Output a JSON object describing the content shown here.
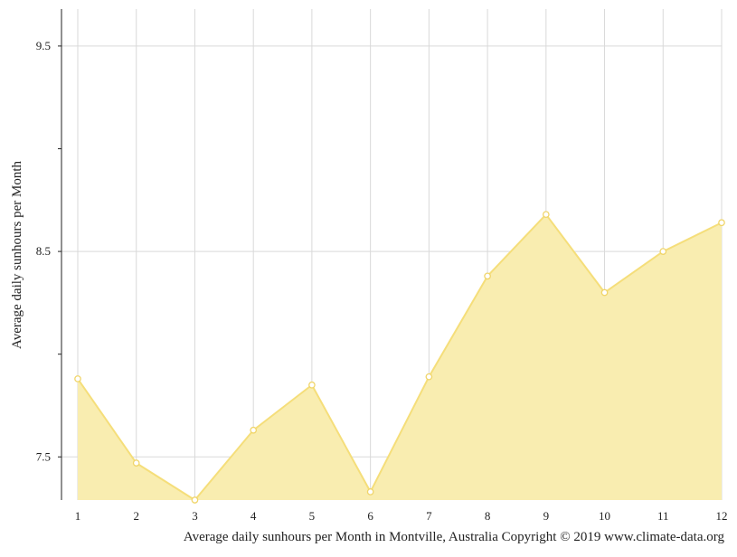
{
  "chart_data": {
    "type": "area",
    "title": "",
    "xlabel": "",
    "ylabel": "Average daily sunhours per Month",
    "caption": "Average daily sunhours per Month in Montville, Australia Copyright © 2019 www.climate-data.org",
    "x": [
      1,
      2,
      3,
      4,
      5,
      6,
      7,
      8,
      9,
      10,
      11,
      12
    ],
    "x_tick_labels": [
      "1",
      "2",
      "3",
      "4",
      "5",
      "6",
      "7",
      "8",
      "9",
      "10",
      "11",
      "12"
    ],
    "y_tick_labels": [
      "9.5",
      "8.5",
      "7.5"
    ],
    "y_ticks": [
      9.5,
      8.5,
      7.5
    ],
    "y_minor_ticks": [
      9.0,
      8.0
    ],
    "ylim": [
      7.29,
      9.68
    ],
    "grid": true,
    "legend": "none",
    "series": [
      {
        "values": [
          7.88,
          7.47,
          7.29,
          7.63,
          7.85,
          7.33,
          7.89,
          8.38,
          8.68,
          8.3,
          8.5,
          8.64
        ]
      }
    ],
    "colors": {
      "fill": "#f9edb0",
      "line": "#f5de7a",
      "marker_stroke": "#f0d56a",
      "marker_fill": "#ffffff",
      "grid": "#d9d9d9",
      "axis": "#222222"
    }
  }
}
